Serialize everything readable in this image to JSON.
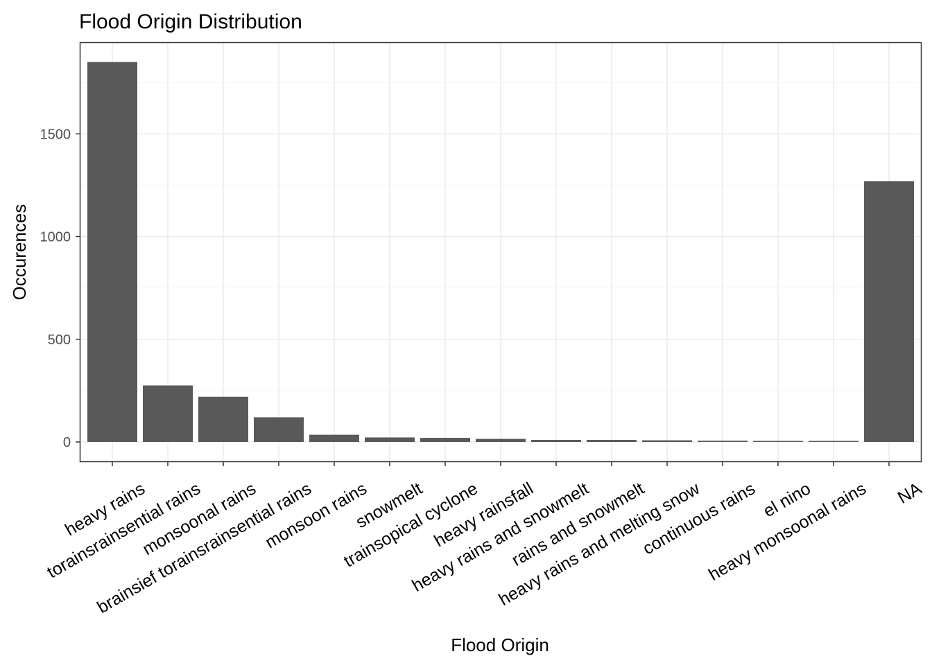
{
  "chart_data": {
    "type": "bar",
    "title": "Flood Origin Distribution",
    "xlabel": "Flood Origin",
    "ylabel": "Occurences",
    "categories": [
      "heavy rains",
      "torainsrainsential rains",
      "monsoonal rains",
      "brainsief torainsrainsential rains",
      "monsoon rains",
      "snowmelt",
      "trainsopical cyclone",
      "heavy rainsfall",
      "heavy rains and snowmelt",
      "rains and snowmelt",
      "heavy rains and melting snow",
      "continuous rains",
      "el nino",
      "heavy monsoonal rains",
      "NA"
    ],
    "values": [
      1850,
      275,
      220,
      120,
      35,
      22,
      20,
      15,
      10,
      10,
      8,
      6,
      5,
      5,
      1270
    ],
    "yticks": [
      0,
      500,
      1000,
      1500
    ],
    "ylim": [
      -100,
      1950
    ],
    "grid": true,
    "legend": "none",
    "colors": {
      "bar": "#595959",
      "grid_major": "#ebebeb",
      "grid_minor": "#f4f4f4",
      "panel_border": "#333333",
      "tick_label": "#4d4d4d"
    }
  }
}
